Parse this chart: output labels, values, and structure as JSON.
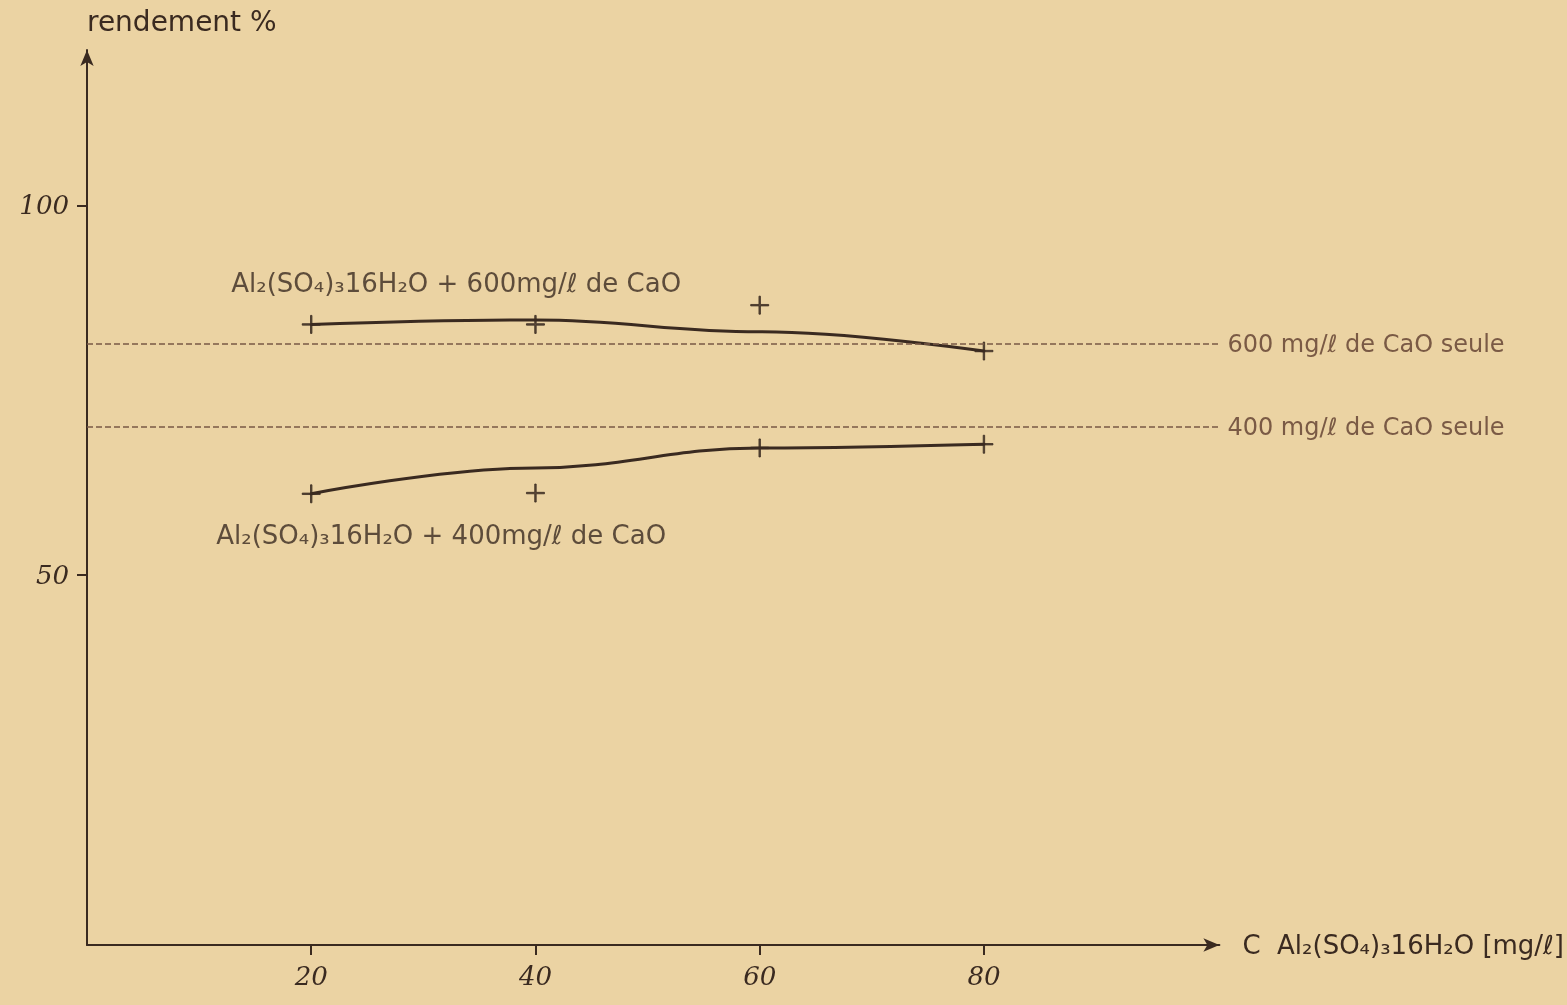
{
  "chart_data": {
    "type": "line",
    "xlabel": "C  Al₂(SO₄)₃16H₂O [mg/ℓ]",
    "ylabel": "rendement %",
    "xlim": [
      0,
      101
    ],
    "xticks": [
      20,
      40,
      60,
      80
    ],
    "ylim": [
      0,
      121
    ],
    "yticks": [
      50,
      100
    ],
    "grid": false,
    "series": [
      {
        "type": "scatter",
        "name": "Al₂(SO₄)₃16H₂O + 600mg/ℓ de CaO",
        "color": "#3a2a20",
        "marker": "cross",
        "x": [
          20,
          40,
          60,
          80
        ],
        "values": [
          83.9,
          83.9,
          86.5,
          80.3
        ]
      },
      {
        "color": "#3a2a20",
        "marker": "none",
        "x": [
          20,
          40,
          60,
          80
        ],
        "values": [
          83.9,
          84.5,
          82.9,
          80.3
        ]
      },
      {
        "type": "scatter",
        "name": "Al₂(SO₄)₃16H₂O + 400mg/ℓ de CaO",
        "color": "#3a2a20",
        "marker": "cross",
        "x": [
          20,
          40,
          60,
          80
        ],
        "values": [
          61,
          61.1,
          67.2,
          67.7
        ]
      },
      {
        "color": "#3a2a20",
        "marker": "none",
        "x": [
          20,
          40,
          60,
          80
        ],
        "values": [
          61,
          64.5,
          67.2,
          67.7
        ]
      }
    ],
    "ref_lines": [
      {
        "axis": "y",
        "value": 81.3,
        "label": "600 mg/ℓ de CaO seule",
        "color": "#7a5a45",
        "line_style": "dashed"
      },
      {
        "axis": "y",
        "value": 70,
        "label": "400 mg/ℓ de CaO seule",
        "color": "#7a5a45",
        "line_style": "dashed"
      }
    ]
  }
}
